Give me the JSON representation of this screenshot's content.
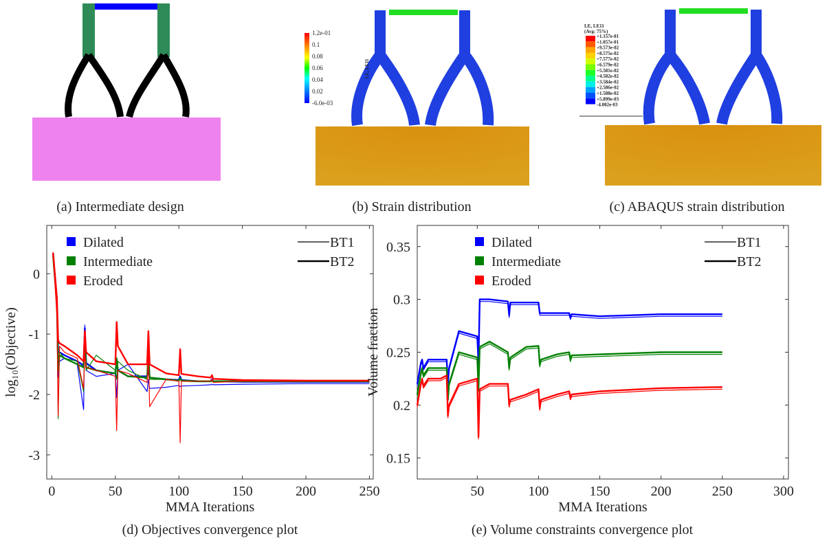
{
  "panels": [
    {
      "caption": "(a) Intermediate design"
    },
    {
      "caption": "(b) Strain distribution",
      "colorbar": {
        "label": "LE, LE11",
        "ticks": [
          "1.2e-01",
          "0.1",
          "0.08",
          "0.06",
          "0.04",
          "0.02",
          "-6.0e-03"
        ]
      }
    },
    {
      "caption": "(c) ABAQUS strain distribution",
      "legend": {
        "title": "LE, LE11",
        "subtitle": "(Avg: 75%)",
        "levels": [
          "+1.157e-01",
          "+1.057e-01",
          "+9.573e-02",
          "+8.575e-02",
          "+7.577e-02",
          "+6.579e-02",
          "+5.581e-02",
          "+4.582e-02",
          "+3.584e-02",
          "+2.586e-02",
          "+1.588e-02",
          "+5.899e-03",
          "-4.082e-03"
        ]
      }
    }
  ],
  "chart_data": [
    {
      "type": "line",
      "caption": "(d) Objectives convergence plot",
      "xlabel": "MMA Iterations",
      "ylabel": "log₁₀(Objective)",
      "xlim": [
        -4,
        253
      ],
      "xticks": [
        0,
        50,
        100,
        150,
        200,
        250
      ],
      "ylim": [
        -3.4,
        0.8
      ],
      "yticks": [
        -3,
        -2,
        -1,
        0
      ],
      "line_styles": [
        {
          "name": "BT1",
          "width": 1.2
        },
        {
          "name": "BT2",
          "width": 2.4
        }
      ],
      "x": [
        1,
        4,
        5,
        6,
        10,
        20,
        25,
        26,
        27,
        35,
        50,
        51,
        52,
        60,
        75,
        76,
        77,
        90,
        100,
        101,
        102,
        115,
        125,
        126,
        127,
        150,
        200,
        250
      ],
      "series": [
        {
          "name": "Dilated",
          "color": "#0000ff",
          "values": [
            [
              0.35,
              -0.4,
              -1.72,
              -1.45,
              -1.4,
              -1.5,
              -2.25,
              -0.85,
              -1.6,
              -1.7,
              -1.65,
              -2.05,
              -1.6,
              -1.5,
              -1.95,
              -1.75,
              -1.9,
              -1.88,
              -1.85,
              -1.87,
              -1.86,
              -1.85,
              -1.84,
              -1.83,
              -1.84,
              -1.83,
              -1.82,
              -1.82
            ],
            [
              0.35,
              -0.5,
              -1.3,
              -1.3,
              -1.35,
              -1.45,
              -1.52,
              -0.9,
              -1.48,
              -1.6,
              -1.65,
              -1.45,
              -1.6,
              -1.7,
              -1.7,
              -1.6,
              -1.72,
              -1.75,
              -1.76,
              -1.7,
              -1.76,
              -1.78,
              -1.78,
              -1.75,
              -1.78,
              -1.79,
              -1.79,
              -1.79
            ]
          ]
        },
        {
          "name": "Intermediate",
          "color": "#008000",
          "values": [
            [
              0.3,
              -0.6,
              -2.4,
              -1.3,
              -1.4,
              -1.45,
              -1.95,
              -1.1,
              -1.6,
              -1.35,
              -1.6,
              -1.75,
              -1.45,
              -1.6,
              -1.75,
              -1.1,
              -1.75,
              -1.75,
              -1.78,
              -1.75,
              -1.78,
              -1.79,
              -1.79,
              -1.78,
              -1.79,
              -1.79,
              -1.79,
              -1.79
            ],
            [
              0.3,
              -0.5,
              -1.6,
              -1.35,
              -1.4,
              -1.5,
              -1.55,
              -1.0,
              -1.55,
              -1.6,
              -1.65,
              -1.4,
              -1.6,
              -1.7,
              -1.72,
              -1.3,
              -1.72,
              -1.75,
              -1.77,
              -1.73,
              -1.77,
              -1.78,
              -1.78,
              -1.77,
              -1.78,
              -1.78,
              -1.78,
              -1.78
            ]
          ]
        },
        {
          "name": "Eroded",
          "color": "#ff0000",
          "values": [
            [
              0.35,
              -0.7,
              -2.35,
              -1.2,
              -1.3,
              -1.4,
              -1.9,
              -1.3,
              -1.55,
              -1.6,
              -1.7,
              -2.6,
              -1.6,
              -1.65,
              -1.8,
              -1.35,
              -2.2,
              -1.75,
              -1.78,
              -2.8,
              -1.78,
              -1.78,
              -1.78,
              -1.75,
              -1.8,
              -1.78,
              -1.78,
              -1.78
            ],
            [
              0.35,
              -0.4,
              -1.1,
              -1.15,
              -1.2,
              -1.35,
              -1.45,
              -0.95,
              -1.3,
              -1.45,
              -1.5,
              -0.8,
              -1.2,
              -1.5,
              -1.5,
              -0.95,
              -1.5,
              -1.65,
              -1.68,
              -1.25,
              -1.66,
              -1.7,
              -1.72,
              -1.68,
              -1.74,
              -1.76,
              -1.77,
              -1.77
            ]
          ]
        }
      ]
    },
    {
      "type": "line",
      "caption": "(e) Volume constraints convergence plot",
      "xlabel": "MMA Iterations",
      "ylabel": "Volume fraction",
      "xlim": [
        1,
        304
      ],
      "xticks": [
        50,
        100,
        150,
        200,
        250,
        300
      ],
      "ylim": [
        0.13,
        0.37
      ],
      "yticks": [
        0.15,
        0.2,
        0.25,
        0.3,
        0.35
      ],
      "line_styles": [
        {
          "name": "BT1",
          "width": 1.2
        },
        {
          "name": "BT2",
          "width": 2.4
        }
      ],
      "x": [
        1,
        4,
        5,
        6,
        10,
        20,
        25,
        26,
        27,
        35,
        50,
        51,
        52,
        60,
        75,
        76,
        77,
        90,
        100,
        101,
        102,
        115,
        125,
        126,
        127,
        150,
        200,
        250
      ],
      "series": [
        {
          "name": "Dilated",
          "color": "#0000ff",
          "values": [
            [
              0.218,
              0.238,
              0.241,
              0.233,
              0.241,
              0.241,
              0.241,
              0.218,
              0.233,
              0.268,
              0.263,
              0.238,
              0.298,
              0.298,
              0.296,
              0.283,
              0.295,
              0.295,
              0.295,
              0.285,
              0.285,
              0.285,
              0.285,
              0.281,
              0.284,
              0.282,
              0.284,
              0.284
            ],
            [
              0.22,
              0.24,
              0.243,
              0.235,
              0.243,
              0.243,
              0.243,
              0.22,
              0.235,
              0.27,
              0.265,
              0.24,
              0.3,
              0.3,
              0.298,
              0.285,
              0.297,
              0.297,
              0.297,
              0.287,
              0.287,
              0.287,
              0.287,
              0.283,
              0.286,
              0.284,
              0.286,
              0.286
            ]
          ]
        },
        {
          "name": "Intermediate",
          "color": "#008000",
          "values": [
            [
              0.208,
              0.228,
              0.233,
              0.226,
              0.233,
              0.233,
              0.233,
              0.203,
              0.218,
              0.248,
              0.243,
              0.213,
              0.253,
              0.258,
              0.248,
              0.233,
              0.243,
              0.253,
              0.254,
              0.236,
              0.241,
              0.246,
              0.248,
              0.241,
              0.245,
              0.246,
              0.248,
              0.248
            ],
            [
              0.21,
              0.23,
              0.235,
              0.228,
              0.235,
              0.235,
              0.235,
              0.205,
              0.22,
              0.25,
              0.245,
              0.215,
              0.255,
              0.26,
              0.25,
              0.235,
              0.245,
              0.255,
              0.256,
              0.238,
              0.243,
              0.248,
              0.25,
              0.243,
              0.247,
              0.248,
              0.25,
              0.25
            ]
          ]
        },
        {
          "name": "Eroded",
          "color": "#ff0000",
          "values": [
            [
              0.198,
              0.218,
              0.223,
              0.216,
              0.223,
              0.223,
              0.226,
              0.188,
              0.198,
              0.218,
              0.223,
              0.168,
              0.213,
              0.218,
              0.218,
              0.198,
              0.203,
              0.208,
              0.213,
              0.195,
              0.203,
              0.208,
              0.211,
              0.205,
              0.208,
              0.211,
              0.214,
              0.215
            ],
            [
              0.2,
              0.22,
              0.225,
              0.218,
              0.225,
              0.225,
              0.228,
              0.19,
              0.2,
              0.22,
              0.225,
              0.17,
              0.215,
              0.22,
              0.22,
              0.2,
              0.205,
              0.21,
              0.215,
              0.197,
              0.205,
              0.21,
              0.213,
              0.207,
              0.21,
              0.213,
              0.216,
              0.217
            ]
          ]
        }
      ]
    }
  ]
}
